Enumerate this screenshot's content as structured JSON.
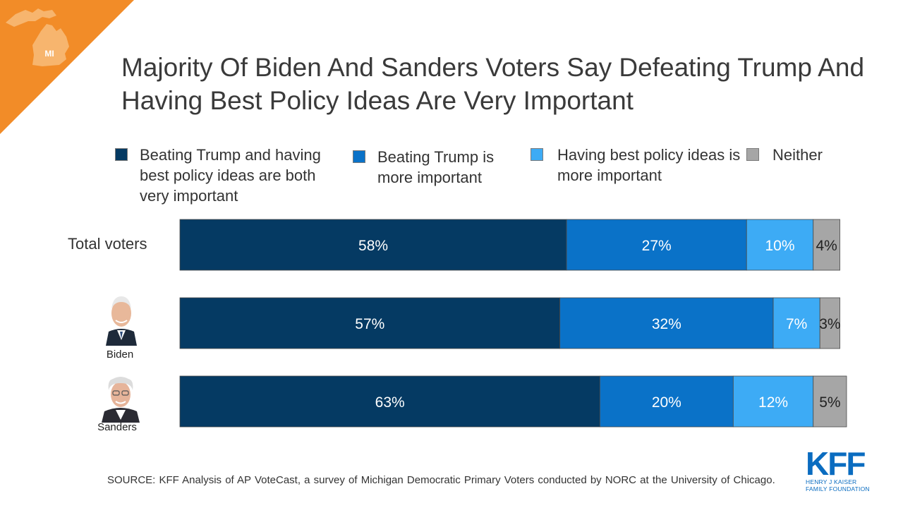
{
  "badge": {
    "state": "MI"
  },
  "title": "Majority Of Biden And Sanders Voters Say Defeating Trump And Having Best Policy Ideas Are Very Important",
  "legend": [
    {
      "label": "Beating Trump and having best policy ideas are both very important",
      "color": "#053a63"
    },
    {
      "label": "Beating Trump is more important",
      "color": "#0a72c8"
    },
    {
      "label": "Having best policy ideas is more important",
      "color": "#3dabf5"
    },
    {
      "label": "Neither",
      "color": "#a6a6a6"
    }
  ],
  "rows": [
    {
      "label": "Total voters"
    },
    {
      "label": "Biden"
    },
    {
      "label": "Sanders"
    }
  ],
  "chart_data": {
    "type": "bar",
    "orientation": "horizontal",
    "stacked": true,
    "categories": [
      "Total voters",
      "Biden",
      "Sanders"
    ],
    "series": [
      {
        "name": "Beating Trump and having best policy ideas are both very important",
        "values": [
          58,
          57,
          63
        ],
        "labels": [
          "58%",
          "57%",
          "63%"
        ],
        "color": "#053a63"
      },
      {
        "name": "Beating Trump is more important",
        "values": [
          27,
          32,
          20
        ],
        "labels": [
          "27%",
          "32%",
          "20%"
        ],
        "color": "#0a72c8"
      },
      {
        "name": "Having best policy ideas is more important",
        "values": [
          10,
          7,
          12
        ],
        "labels": [
          "10%",
          "7%",
          "12%"
        ],
        "color": "#3dabf5"
      },
      {
        "name": "Neither",
        "values": [
          4,
          3,
          5
        ],
        "labels": [
          "4%",
          "3%",
          "5%"
        ],
        "color": "#a6a6a6"
      }
    ],
    "xlim": [
      0,
      100
    ],
    "grid": false,
    "legend_position": "top"
  },
  "source": "SOURCE: KFF Analysis of AP VoteCast, a survey of Michigan Democratic Primary Voters conducted by NORC at the University of Chicago.",
  "logo": {
    "name": "KFF",
    "line1": "HENRY J KAISER",
    "line2": "FAMILY FOUNDATION"
  }
}
